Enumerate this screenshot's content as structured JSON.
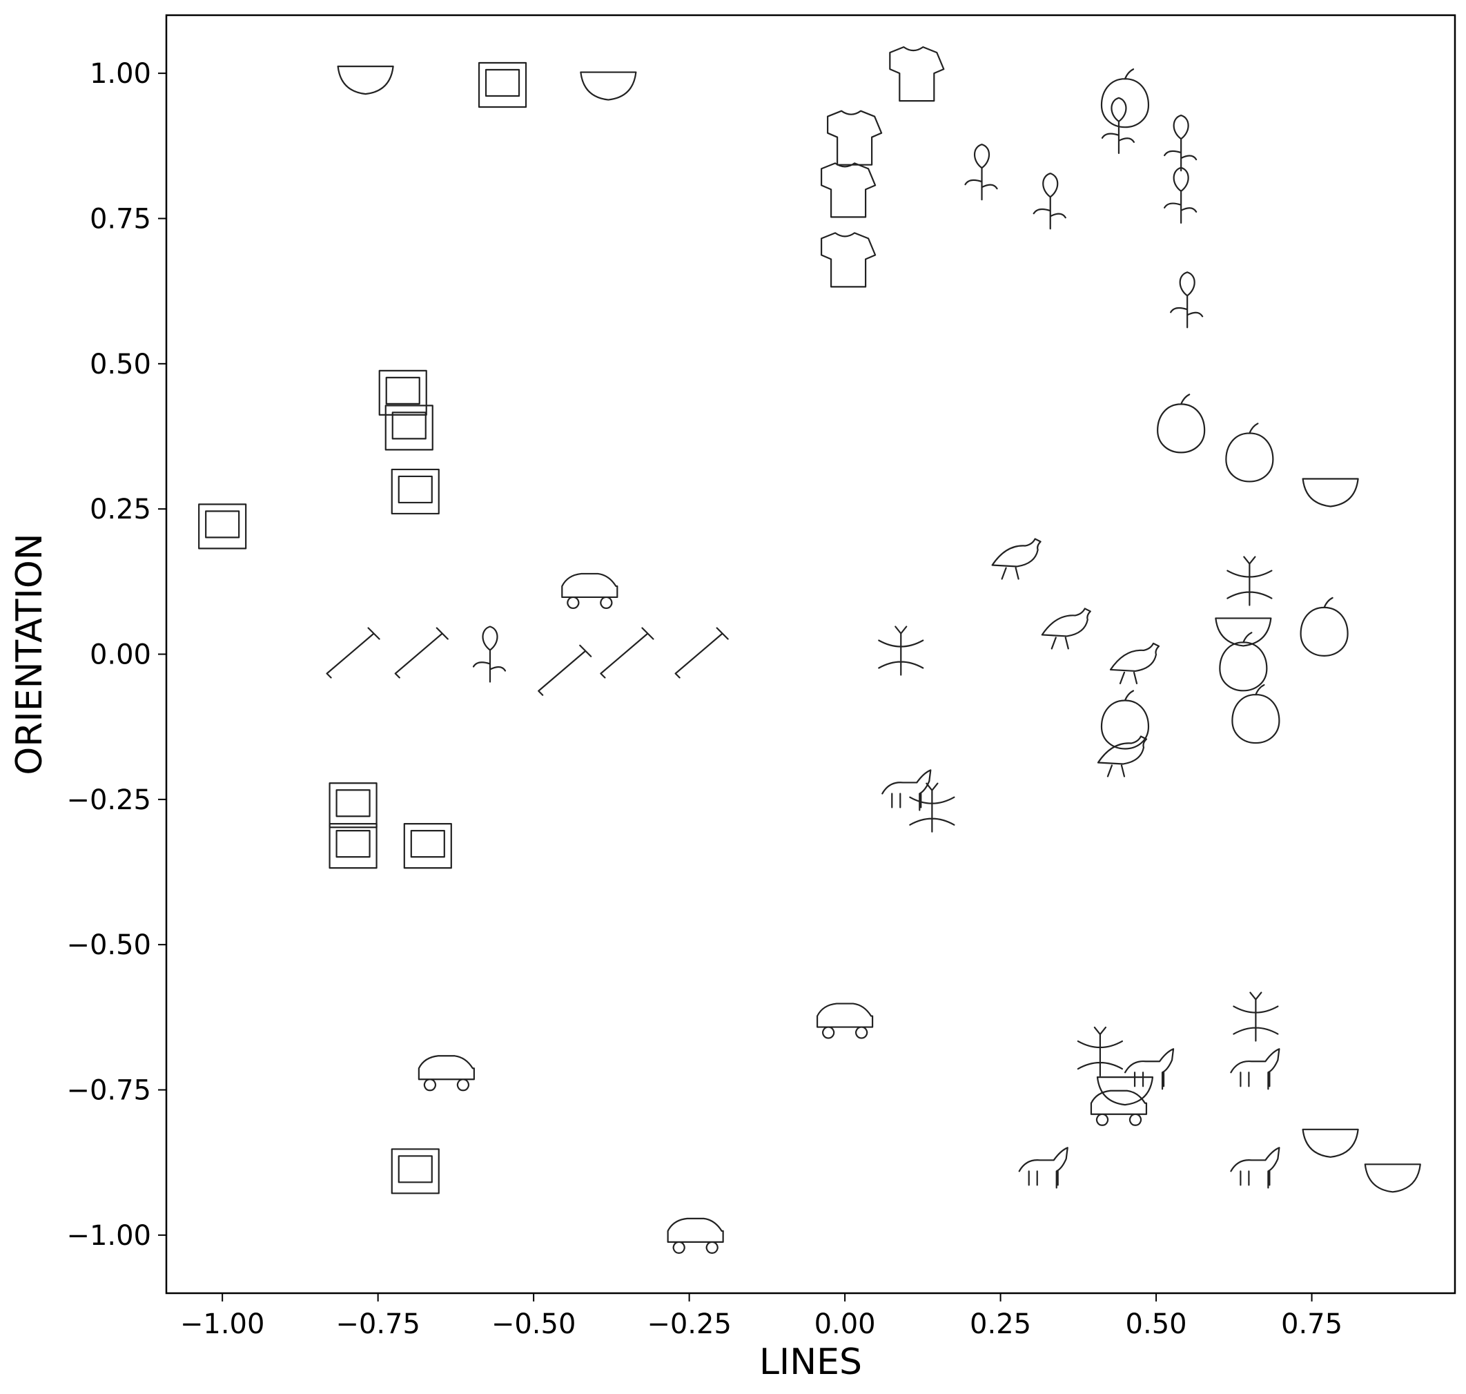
{
  "chart_data": {
    "type": "scatter",
    "title": "",
    "xlabel": "LINES",
    "ylabel": "ORIENTATION",
    "xlim": [
      -1.09,
      0.98
    ],
    "ylim": [
      -1.1,
      1.1
    ],
    "xticks": [
      -1.0,
      -0.75,
      -0.5,
      -0.25,
      0.0,
      0.25,
      0.5,
      0.75
    ],
    "yticks": [
      -1.0,
      -0.75,
      -0.5,
      -0.25,
      0.0,
      0.25,
      0.5,
      0.75,
      1.0
    ],
    "xtick_labels": [
      "−1.00",
      "−0.75",
      "−0.50",
      "−0.25",
      "0.00",
      "0.25",
      "0.50",
      "0.75"
    ],
    "ytick_labels": [
      "−1.00",
      "−0.75",
      "−0.50",
      "−0.25",
      "0.00",
      "0.25",
      "0.50",
      "0.75",
      "1.00"
    ],
    "grid": false,
    "legend": false,
    "marker_style": "line-drawing pictograms",
    "points": [
      {
        "icon": "salt-shaker",
        "x": -0.77,
        "y": 1.0
      },
      {
        "icon": "lighthouse",
        "x": -0.55,
        "y": 0.98
      },
      {
        "icon": "glass",
        "x": -0.38,
        "y": 0.99
      },
      {
        "icon": "fur-coat",
        "x": 0.11,
        "y": 1.0
      },
      {
        "icon": "hoodie",
        "x": 0.01,
        "y": 0.89
      },
      {
        "icon": "t-shirt",
        "x": 0.0,
        "y": 0.8
      },
      {
        "icon": "military-jacket",
        "x": 0.0,
        "y": 0.68
      },
      {
        "icon": "sunflower",
        "x": 0.22,
        "y": 0.83
      },
      {
        "icon": "tulip",
        "x": 0.33,
        "y": 0.78
      },
      {
        "icon": "bell-pepper",
        "x": 0.45,
        "y": 0.95
      },
      {
        "icon": "palm-tree",
        "x": 0.44,
        "y": 0.91
      },
      {
        "icon": "artichoke",
        "x": 0.54,
        "y": 0.88
      },
      {
        "icon": "broccoli",
        "x": 0.54,
        "y": 0.79
      },
      {
        "icon": "rose",
        "x": 0.55,
        "y": 0.61
      },
      {
        "icon": "dishwasher",
        "x": -0.71,
        "y": 0.45
      },
      {
        "icon": "pyramid",
        "x": -0.7,
        "y": 0.39
      },
      {
        "icon": "windmill",
        "x": -0.69,
        "y": 0.28
      },
      {
        "icon": "washing-machine",
        "x": -1.0,
        "y": 0.22
      },
      {
        "icon": "cherries",
        "x": 0.54,
        "y": 0.39
      },
      {
        "icon": "apple",
        "x": 0.65,
        "y": 0.34
      },
      {
        "icon": "teapot",
        "x": 0.78,
        "y": 0.29
      },
      {
        "icon": "pigeon",
        "x": 0.27,
        "y": 0.17
      },
      {
        "icon": "scooter",
        "x": -0.41,
        "y": 0.11
      },
      {
        "icon": "ladybug",
        "x": 0.65,
        "y": 0.12
      },
      {
        "icon": "parrot",
        "x": 0.35,
        "y": 0.05
      },
      {
        "icon": "bowl-of-fruit",
        "x": 0.64,
        "y": 0.05
      },
      {
        "icon": "banana",
        "x": 0.77,
        "y": 0.04
      },
      {
        "icon": "pliers",
        "x": -0.79,
        "y": 0.0
      },
      {
        "icon": "axe",
        "x": -0.68,
        "y": 0.0
      },
      {
        "icon": "asparagus",
        "x": -0.57,
        "y": 0.0
      },
      {
        "icon": "hammer",
        "x": -0.35,
        "y": 0.0
      },
      {
        "icon": "shovel",
        "x": -0.23,
        "y": 0.0
      },
      {
        "icon": "saw",
        "x": -0.45,
        "y": -0.03
      },
      {
        "icon": "dragonfly",
        "x": 0.09,
        "y": 0.0
      },
      {
        "icon": "vulture",
        "x": 0.46,
        "y": -0.01
      },
      {
        "icon": "onion",
        "x": 0.64,
        "y": -0.02
      },
      {
        "icon": "raspberry",
        "x": 0.45,
        "y": -0.12
      },
      {
        "icon": "lemon",
        "x": 0.66,
        "y": -0.11
      },
      {
        "icon": "heron",
        "x": 0.44,
        "y": -0.17
      },
      {
        "icon": "deer",
        "x": 0.1,
        "y": -0.24
      },
      {
        "icon": "dragonfly-2",
        "x": 0.14,
        "y": -0.27
      },
      {
        "icon": "church",
        "x": -0.79,
        "y": -0.26
      },
      {
        "icon": "television",
        "x": -0.79,
        "y": -0.33
      },
      {
        "icon": "toaster",
        "x": -0.67,
        "y": -0.33
      },
      {
        "icon": "tractor",
        "x": 0.0,
        "y": -0.63
      },
      {
        "icon": "butterfly",
        "x": 0.66,
        "y": -0.63
      },
      {
        "icon": "ant",
        "x": 0.41,
        "y": -0.69
      },
      {
        "icon": "horse",
        "x": 0.49,
        "y": -0.72
      },
      {
        "icon": "cow",
        "x": 0.66,
        "y": -0.72
      },
      {
        "icon": "bus",
        "x": -0.64,
        "y": -0.72
      },
      {
        "icon": "igloo",
        "x": 0.45,
        "y": -0.74
      },
      {
        "icon": "bicycle",
        "x": 0.44,
        "y": -0.78
      },
      {
        "icon": "plate",
        "x": 0.78,
        "y": -0.83
      },
      {
        "icon": "microwave",
        "x": -0.69,
        "y": -0.89
      },
      {
        "icon": "donkey",
        "x": 0.32,
        "y": -0.89
      },
      {
        "icon": "goat",
        "x": 0.66,
        "y": -0.89
      },
      {
        "icon": "bowl",
        "x": 0.88,
        "y": -0.89
      },
      {
        "icon": "car",
        "x": -0.24,
        "y": -1.0
      }
    ]
  }
}
